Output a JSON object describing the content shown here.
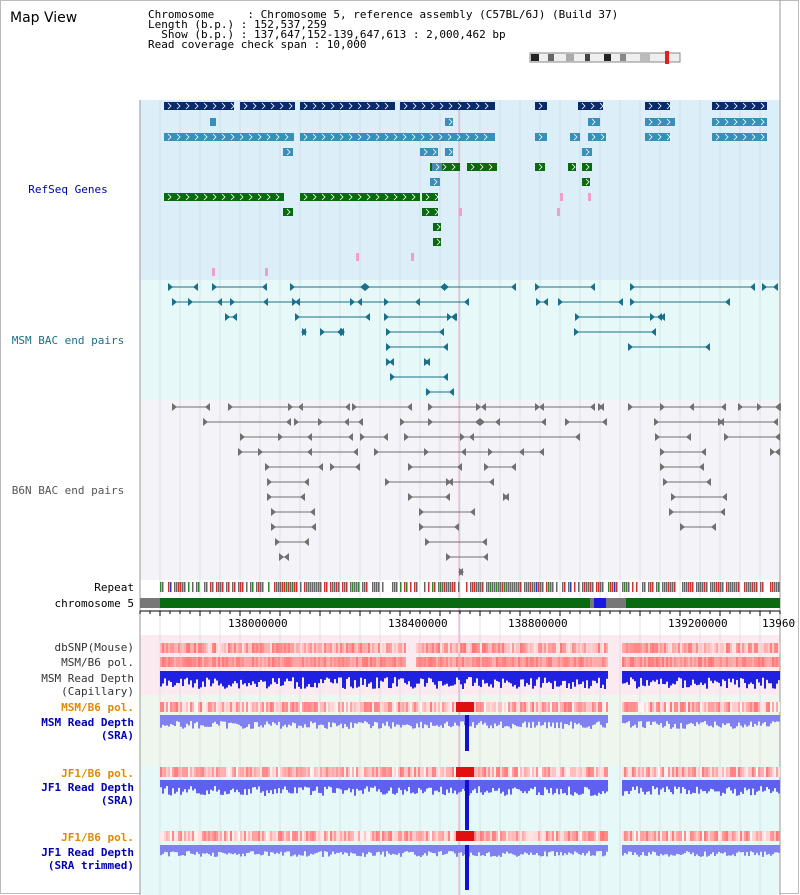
{
  "header": {
    "title": "Map View",
    "info_lines": [
      "Chromosome     : Chromosome 5, reference assembly (C57BL/6J) (Build 37)",
      "Length (b.p.) : 152,537,259",
      "  Show (b.p.) : 137,647,152-139,647,613 : 2,000,462 bp",
      "Read coverage check span : 10,000"
    ]
  },
  "tracks": {
    "refseq": "RefSeq Genes",
    "msm_bac": "MSM BAC end pairs",
    "b6n_bac": "B6N BAC end pairs",
    "repeat": "Repeat",
    "chromosome": "chromosome 5",
    "dbsnp": "dbSNP(Mouse)",
    "msm_b6_pol_1": "MSM/B6 pol.",
    "msm_read_depth_cap": "MSM Read Depth",
    "msm_read_depth_cap_sub": "(Capillary)",
    "msm_b6_pol_2": "MSM/B6 pol.",
    "msm_read_depth_sra": "MSM Read Depth",
    "msm_read_depth_sra_sub": "(SRA)",
    "jf1_b6_pol_1": "JF1/B6 pol.",
    "jf1_read_depth_sra": "JF1 Read Depth",
    "jf1_read_depth_sra_sub": "(SRA)",
    "jf1_b6_pol_2": "JF1/B6 pol.",
    "jf1_read_depth_trim": "JF1 Read Depth",
    "jf1_read_depth_trim_sub": "(SRA trimmed)"
  },
  "axis": {
    "ticks": [
      "138000000",
      "138400000",
      "138800000",
      "139200000",
      "13960"
    ]
  },
  "colors": {
    "refseq_bg": "#dceef8",
    "msm_bg": "#e6f8f8",
    "b6n_bg": "#f4f4f8",
    "gene_dark": "#0a2a6a",
    "gene_mid": "#3a8fb8",
    "gene_green": "#0a6a10",
    "msm_bac": "#1a6f8a",
    "b6n_bac": "#707070",
    "label_blue": "#0000b0",
    "label_orange": "#e08a00",
    "chromosome_green": "#0a6a10"
  }
}
